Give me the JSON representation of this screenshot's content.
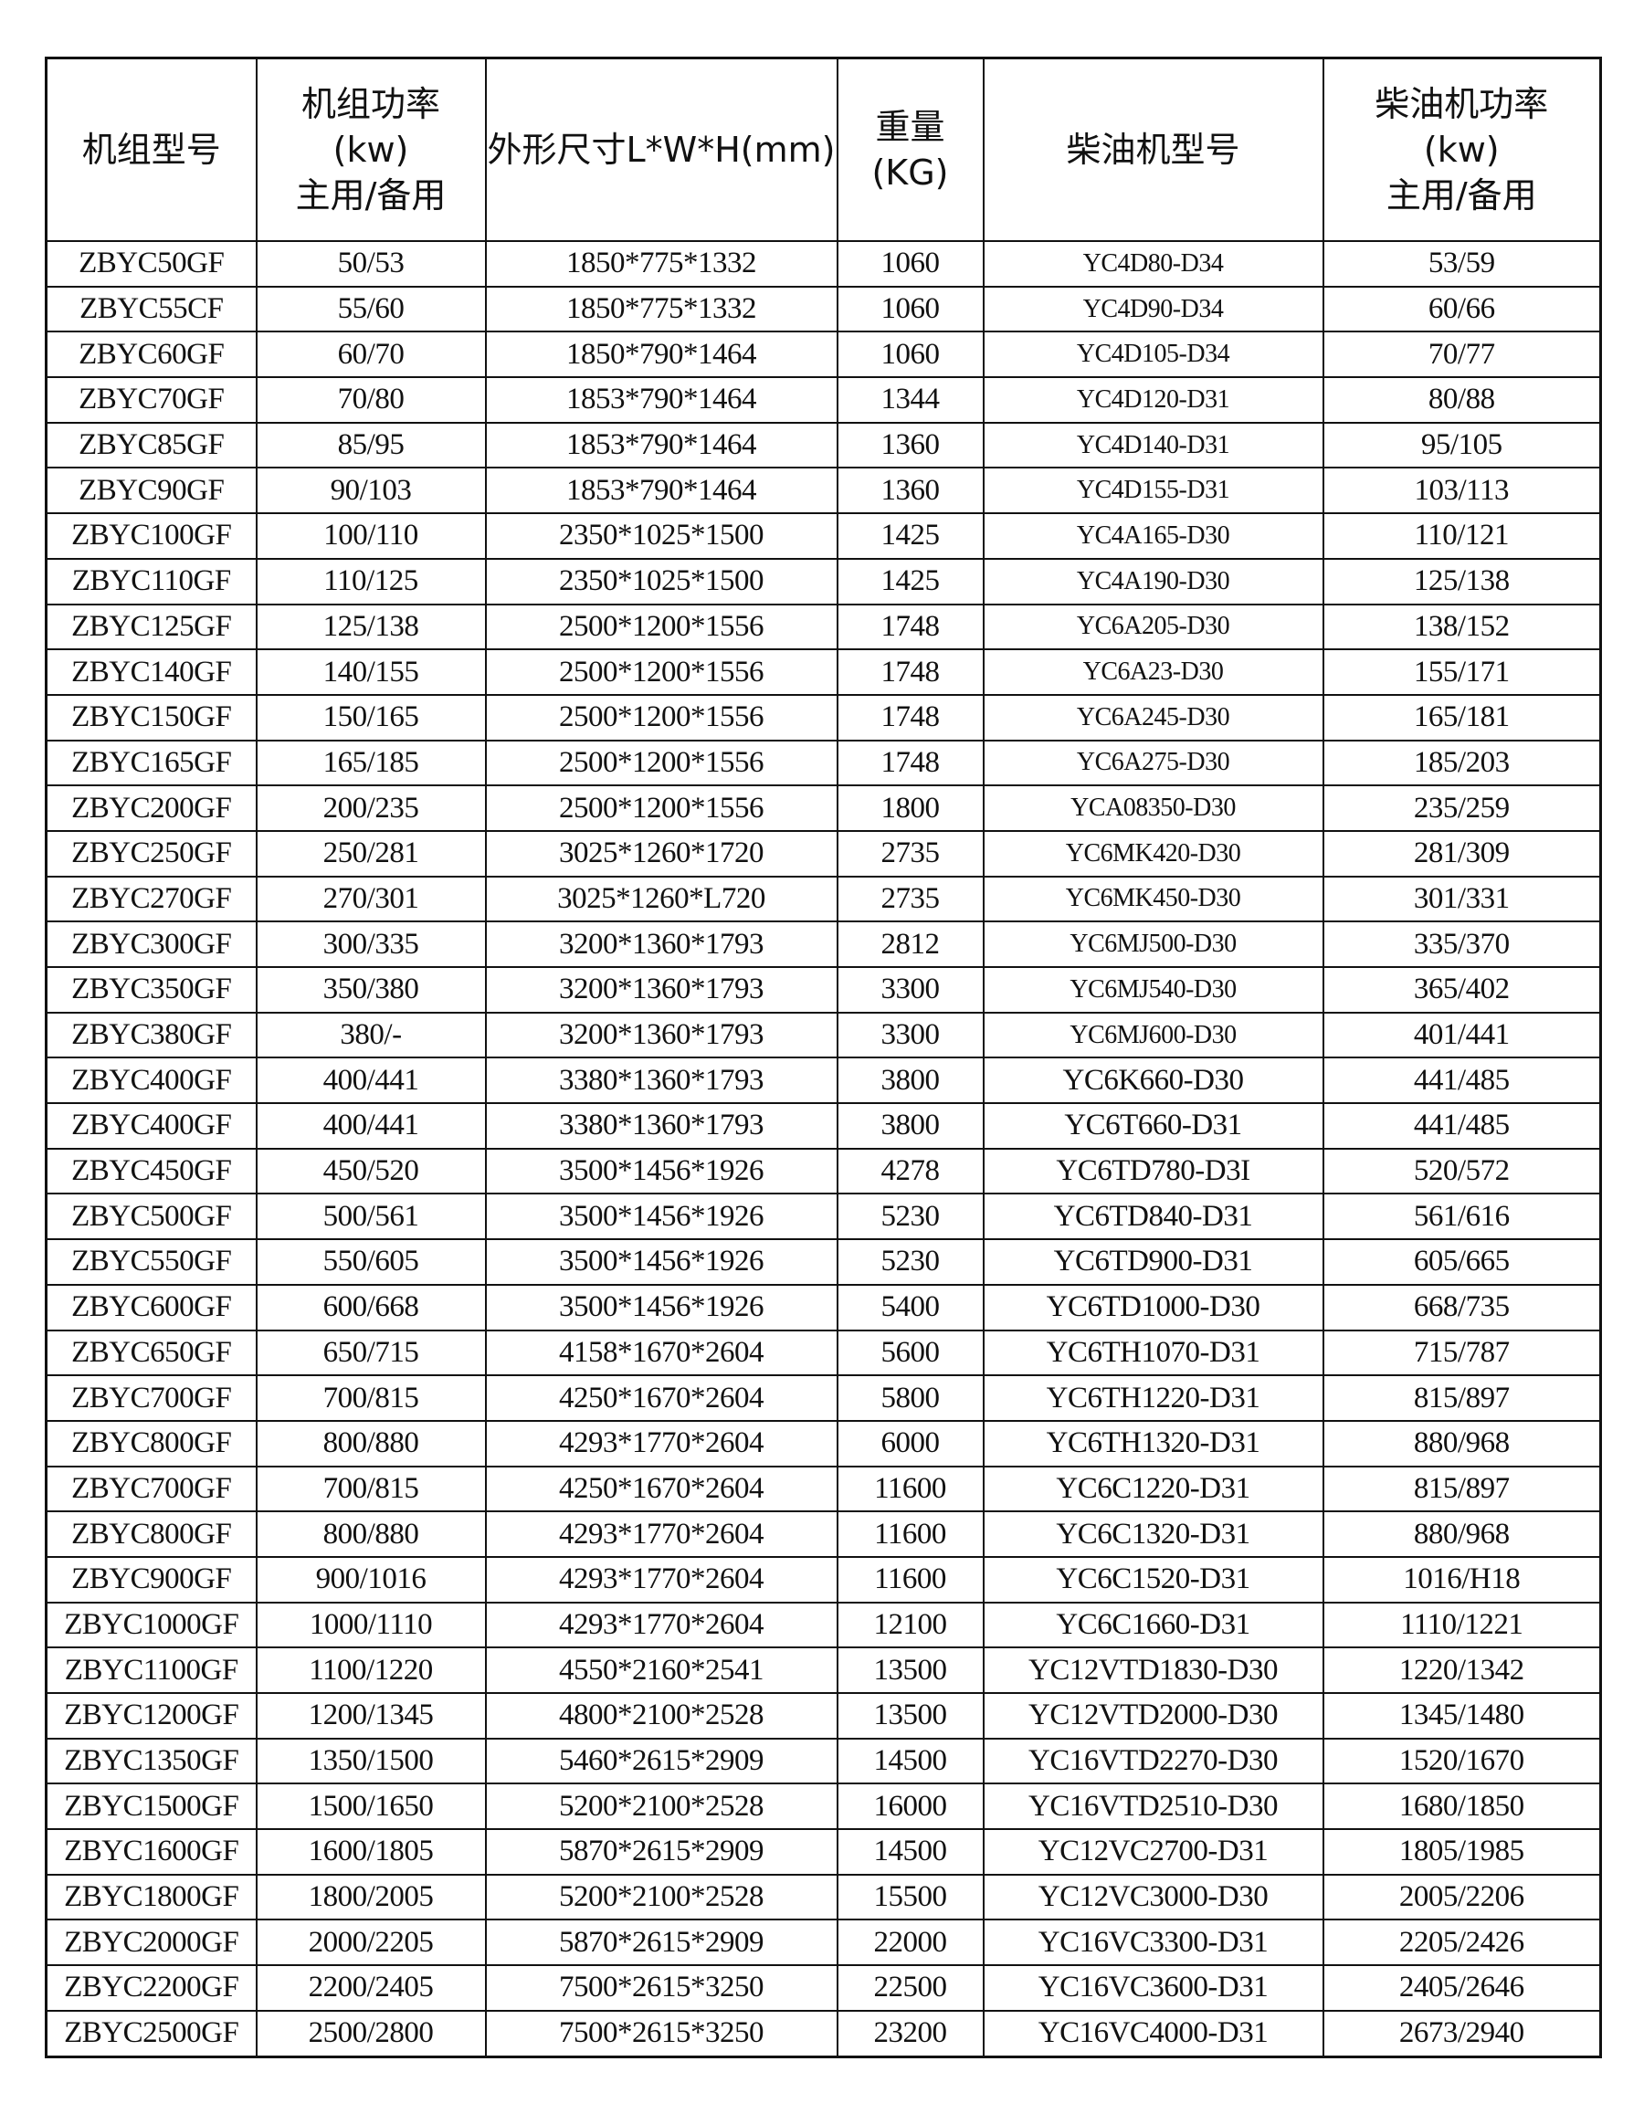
{
  "headers": [
    {
      "lines": [
        "机组型号"
      ]
    },
    {
      "lines": [
        "机组功率",
        "(kw)",
        "主用/备用"
      ]
    },
    {
      "lines": [
        "外形尺寸L*W*H(mm)"
      ]
    },
    {
      "lines": [
        "重量",
        "(KG)"
      ]
    },
    {
      "lines": [
        "柴油机型号"
      ]
    },
    {
      "lines": [
        "柴油机功率",
        "(kw)",
        "主用/备用"
      ]
    }
  ],
  "rows": [
    [
      "ZBYC50GF",
      "50/53",
      "1850*775*1332",
      "1060",
      "YC4D80-D34",
      "53/59"
    ],
    [
      "ZBYC55CF",
      "55/60",
      "1850*775*1332",
      "1060",
      "YC4D90-D34",
      "60/66"
    ],
    [
      "ZBYC60GF",
      "60/70",
      "1850*790*1464",
      "1060",
      "YC4D105-D34",
      "70/77"
    ],
    [
      "ZBYC70GF",
      "70/80",
      "1853*790*1464",
      "1344",
      "YC4D120-D31",
      "80/88"
    ],
    [
      "ZBYC85GF",
      "85/95",
      "1853*790*1464",
      "1360",
      "YC4D140-D31",
      "95/105"
    ],
    [
      "ZBYC90GF",
      "90/103",
      "1853*790*1464",
      "1360",
      "YC4D155-D31",
      "103/113"
    ],
    [
      "ZBYC100GF",
      "100/110",
      "2350*1025*1500",
      "1425",
      "YC4A165-D30",
      "110/121"
    ],
    [
      "ZBYC110GF",
      "110/125",
      "2350*1025*1500",
      "1425",
      "YC4A190-D30",
      "125/138"
    ],
    [
      "ZBYC125GF",
      "125/138",
      "2500*1200*1556",
      "1748",
      "YC6A205-D30",
      "138/152"
    ],
    [
      "ZBYC140GF",
      "140/155",
      "2500*1200*1556",
      "1748",
      "YC6A23-D30",
      "155/171"
    ],
    [
      "ZBYC150GF",
      "150/165",
      "2500*1200*1556",
      "1748",
      "YC6A245-D30",
      "165/181"
    ],
    [
      "ZBYC165GF",
      "165/185",
      "2500*1200*1556",
      "1748",
      "YC6A275-D30",
      "185/203"
    ],
    [
      "ZBYC200GF",
      "200/235",
      "2500*1200*1556",
      "1800",
      "YCA08350-D30",
      "235/259"
    ],
    [
      "ZBYC250GF",
      "250/281",
      "3025*1260*1720",
      "2735",
      "YC6MK420-D30",
      "281/309"
    ],
    [
      "ZBYC270GF",
      "270/301",
      "3025*1260*L720",
      "2735",
      "YC6MK450-D30",
      "301/331"
    ],
    [
      "ZBYC300GF",
      "300/335",
      "3200*1360*1793",
      "2812",
      "YC6MJ500-D30",
      "335/370"
    ],
    [
      "ZBYC350GF",
      "350/380",
      "3200*1360*1793",
      "3300",
      "YC6MJ540-D30",
      "365/402"
    ],
    [
      "ZBYC380GF",
      "380/-",
      "3200*1360*1793",
      "3300",
      "YC6MJ600-D30",
      "401/441"
    ],
    [
      "ZBYC400GF",
      "400/441",
      "3380*1360*1793",
      "3800",
      "YC6K660-D30",
      "441/485"
    ],
    [
      "ZBYC400GF",
      "400/441",
      "3380*1360*1793",
      "3800",
      "YC6T660-D31",
      "441/485"
    ],
    [
      "ZBYC450GF",
      "450/520",
      "3500*1456*1926",
      "4278",
      "YC6TD780-D3I",
      "520/572"
    ],
    [
      "ZBYC500GF",
      "500/561",
      "3500*1456*1926",
      "5230",
      "YC6TD840-D31",
      "561/616"
    ],
    [
      "ZBYC550GF",
      "550/605",
      "3500*1456*1926",
      "5230",
      "YC6TD900-D31",
      "605/665"
    ],
    [
      "ZBYC600GF",
      "600/668",
      "3500*1456*1926",
      "5400",
      "YC6TD1000-D30",
      "668/735"
    ],
    [
      "ZBYC650GF",
      "650/715",
      "4158*1670*2604",
      "5600",
      "YC6TH1070-D31",
      "715/787"
    ],
    [
      "ZBYC700GF",
      "700/815",
      "4250*1670*2604",
      "5800",
      "YC6TH1220-D31",
      "815/897"
    ],
    [
      "ZBYC800GF",
      "800/880",
      "4293*1770*2604",
      "6000",
      "YC6TH1320-D31",
      "880/968"
    ],
    [
      "ZBYC700GF",
      "700/815",
      "4250*1670*2604",
      "11600",
      "YC6C1220-D31",
      "815/897"
    ],
    [
      "ZBYC800GF",
      "800/880",
      "4293*1770*2604",
      "11600",
      "YC6C1320-D31",
      "880/968"
    ],
    [
      "ZBYC900GF",
      "900/1016",
      "4293*1770*2604",
      "11600",
      "YC6C1520-D31",
      "1016/H18"
    ],
    [
      "ZBYC1000GF",
      "1000/1110",
      "4293*1770*2604",
      "12100",
      "YC6C1660-D31",
      "1110/1221"
    ],
    [
      "ZBYC1100GF",
      "1100/1220",
      "4550*2160*2541",
      "13500",
      "YC12VTD1830-D30",
      "1220/1342"
    ],
    [
      "ZBYC1200GF",
      "1200/1345",
      "4800*2100*2528",
      "13500",
      "YC12VTD2000-D30",
      "1345/1480"
    ],
    [
      "ZBYC1350GF",
      "1350/1500",
      "5460*2615*2909",
      "14500",
      "YC16VTD2270-D30",
      "1520/1670"
    ],
    [
      "ZBYC1500GF",
      "1500/1650",
      "5200*2100*2528",
      "16000",
      "YC16VTD2510-D30",
      "1680/1850"
    ],
    [
      "ZBYC1600GF",
      "1600/1805",
      "5870*2615*2909",
      "14500",
      "YC12VC2700-D31",
      "1805/1985"
    ],
    [
      "ZBYC1800GF",
      "1800/2005",
      "5200*2100*2528",
      "15500",
      "YC12VC3000-D30",
      "2005/2206"
    ],
    [
      "ZBYC2000GF",
      "2000/2205",
      "5870*2615*2909",
      "22000",
      "YC16VC3300-D31",
      "2205/2426"
    ],
    [
      "ZBYC2200GF",
      "2200/2405",
      "7500*2615*3250",
      "22500",
      "YC16VC3600-D31",
      "2405/2646"
    ],
    [
      "ZBYC2500GF",
      "2500/2800",
      "7500*2615*3250",
      "23200",
      "YC16VC4000-D31",
      "2673/2940"
    ]
  ]
}
